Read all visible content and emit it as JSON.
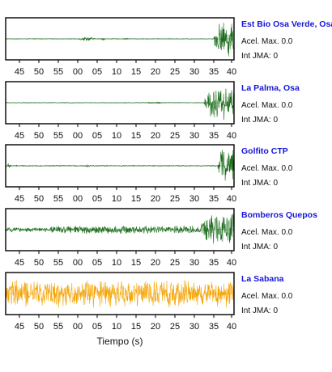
{
  "chart_data": {
    "type": "line",
    "xlabel": "Tiempo (s)",
    "tick_labels": [
      "45",
      "50",
      "55",
      "00",
      "05",
      "10",
      "15",
      "20",
      "25",
      "30",
      "35",
      "40"
    ],
    "stations": [
      {
        "name": "Est Bio Osa Verde, Osa",
        "acel_label": "Acel. Max. 0.0",
        "int_label": "Int JMA: 0",
        "color": "#1a6b1a",
        "noise_level": 0.02,
        "bursts": [
          {
            "start": 0.31,
            "end": 0.4,
            "amp": 0.12
          },
          {
            "start": 0.41,
            "end": 0.44,
            "amp": 0.08
          },
          {
            "start": 0.52,
            "end": 0.55,
            "amp": 0.05
          },
          {
            "start": 0.91,
            "end": 1.0,
            "amp": 0.95
          }
        ]
      },
      {
        "name": "La Palma, Osa",
        "acel_label": "Acel. Max. 0.0",
        "int_label": "Int JMA: 0",
        "color": "#1a6b1a",
        "noise_level": 0.02,
        "bursts": [
          {
            "start": 0.6,
            "end": 0.72,
            "amp": 0.05
          },
          {
            "start": 0.87,
            "end": 1.0,
            "amp": 0.95
          }
        ]
      },
      {
        "name": "Golfito CTP",
        "acel_label": "Acel. Max. 0.0",
        "int_label": "Int JMA: 0",
        "color": "#1a6b1a",
        "noise_level": 0.03,
        "bursts": [
          {
            "start": 0.0,
            "end": 0.03,
            "amp": 0.12
          },
          {
            "start": 0.34,
            "end": 0.38,
            "amp": 0.06
          },
          {
            "start": 0.93,
            "end": 1.0,
            "amp": 0.95
          }
        ]
      },
      {
        "name": "Bomberos Quepos",
        "acel_label": "Acel. Max. 0.0",
        "int_label": "Int JMA: 0",
        "color": "#1a6b1a",
        "noise_level": 0.12,
        "bursts": [
          {
            "start": 0.2,
            "end": 0.85,
            "amp": 0.22
          },
          {
            "start": 0.85,
            "end": 1.0,
            "amp": 0.95
          }
        ]
      },
      {
        "name": "La Sabana",
        "acel_label": "Acel. Max. 0.0",
        "int_label": "Int JMA: 0",
        "color": "#f5a300",
        "noise_level": 0.65,
        "bursts": [
          {
            "start": 0.0,
            "end": 1.0,
            "amp": 0.75
          }
        ]
      }
    ]
  }
}
